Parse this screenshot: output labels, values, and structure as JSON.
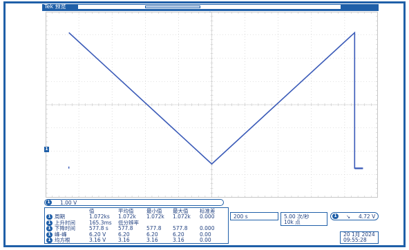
{
  "app": {
    "brand": "Tek",
    "state": "预览"
  },
  "colors": {
    "accent": "#1f5fa8",
    "grid": "#c6c6c6",
    "waveform": "#3b5bb8"
  },
  "channel": {
    "id": "1",
    "scale": "1.00 V"
  },
  "measurements": {
    "headers": [
      "值",
      "平均值",
      "最小值",
      "最大值",
      "标准差"
    ],
    "rows": [
      {
        "name": "周期",
        "values": [
          "1.072ks",
          "1.072k",
          "1.072k",
          "1.072k",
          "0.000"
        ]
      },
      {
        "name": "上升时间",
        "values": [
          "165.3ms",
          "低分辨率",
          "",
          "",
          ""
        ]
      },
      {
        "name": "下降时间",
        "values": [
          "577.8 s",
          "577.8",
          "577.8",
          "577.8",
          "0.000"
        ]
      },
      {
        "name": "峰-峰",
        "values": [
          "6.20 V",
          "6.20",
          "6.20",
          "6.20",
          "0.00"
        ]
      },
      {
        "name": "均方根",
        "values": [
          "3.16 V",
          "3.16",
          "3.16",
          "3.16",
          "0.00"
        ]
      }
    ]
  },
  "timebase": {
    "scale": "200 s"
  },
  "acquisition": {
    "rate": "5.00 次/秒",
    "points": "10k 点"
  },
  "trigger": {
    "channel": "1",
    "slope_icon": "falling-edge-icon",
    "level": "4.72 V"
  },
  "clock": {
    "date": "20 1月  2024",
    "time": "09:55:28"
  },
  "waveform": {
    "description_points_div": [
      [
        -4.3,
        -5.0
      ],
      [
        -4.3,
        -5.0
      ],
      [
        -4.3,
        3.05
      ],
      [
        0.0,
        -3.15
      ],
      [
        4.3,
        3.05
      ],
      [
        4.3,
        -5.0
      ],
      [
        4.55,
        -5.0
      ]
    ]
  }
}
